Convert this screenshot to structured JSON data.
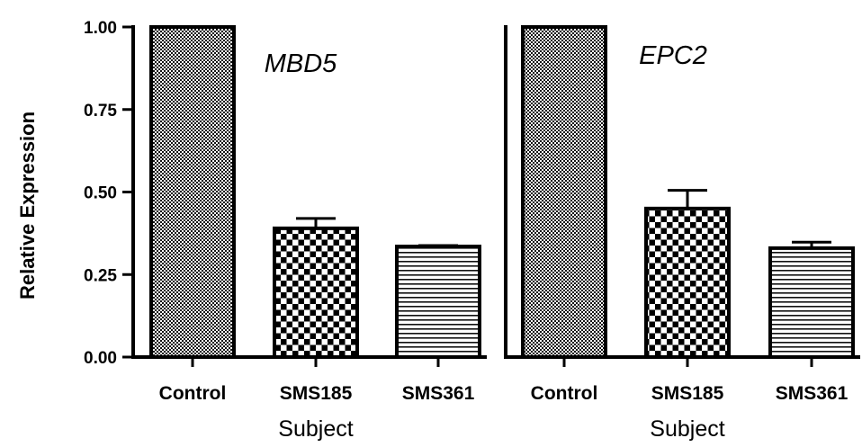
{
  "chart_data": [
    {
      "type": "bar",
      "title": "MBD5",
      "xlabel": "Subject",
      "ylabel": "Relative Expression",
      "ylim": [
        0,
        1.0
      ],
      "yticks": [
        "0.00",
        "0.25",
        "0.50",
        "0.75",
        "1.00"
      ],
      "categories": [
        "Control",
        "SMS185",
        "SMS361"
      ],
      "values": [
        1.0,
        0.39,
        0.335
      ],
      "error": [
        0.0,
        0.03,
        0.003
      ],
      "patterns": [
        "fine-checker",
        "coarse-checker",
        "horizontal-lines"
      ]
    },
    {
      "type": "bar",
      "title": "EPC2",
      "xlabel": "Subject",
      "ylabel": "",
      "ylim": [
        0,
        1.0
      ],
      "categories": [
        "Control",
        "SMS185",
        "SMS361"
      ],
      "values": [
        1.0,
        0.45,
        0.33
      ],
      "error": [
        0.0,
        0.055,
        0.018
      ],
      "patterns": [
        "fine-checker",
        "coarse-checker",
        "horizontal-lines"
      ]
    }
  ]
}
